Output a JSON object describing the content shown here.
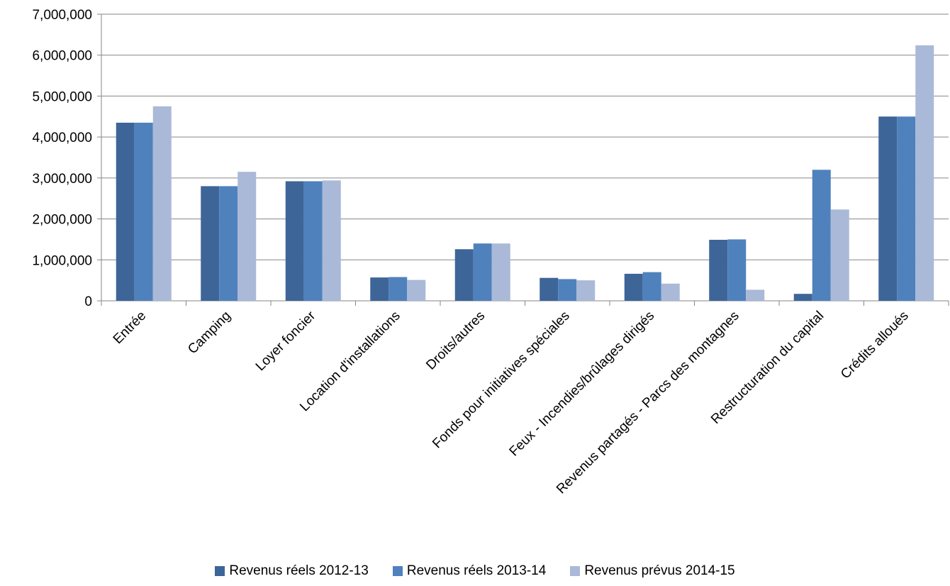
{
  "chart_data": {
    "type": "bar",
    "categories": [
      "Entrée",
      "Camping",
      "Loyer foncier",
      "Location d'installations",
      "Droits/autres",
      "Fonds pour initiatives spéciales",
      "Feux - Incendies/brûlages dirigés",
      "Revenus partagés - Parcs des montagnes",
      "Restructuration du capital",
      "Crédits alloués"
    ],
    "series": [
      {
        "name": "Revenus réels 2012-13",
        "color": "#3e6598",
        "values": [
          4350000,
          2800000,
          2920000,
          570000,
          1260000,
          560000,
          660000,
          1490000,
          170000,
          4500000
        ]
      },
      {
        "name": "Revenus réels 2013-14",
        "color": "#4f81bd",
        "values": [
          4350000,
          2800000,
          2920000,
          580000,
          1400000,
          530000,
          700000,
          1500000,
          3200000,
          4500000
        ]
      },
      {
        "name": "Revenus prévus 2014-15",
        "color": "#aab9d7",
        "values": [
          4750000,
          3150000,
          2940000,
          510000,
          1400000,
          500000,
          420000,
          270000,
          2230000,
          6240000
        ]
      }
    ],
    "yticks": [
      "0",
      "1,000,000",
      "2,000,000",
      "3,000,000",
      "4,000,000",
      "5,000,000",
      "6,000,000",
      "7,000,000"
    ],
    "ylim": [
      0,
      7000000
    ],
    "grid": true,
    "legend_position": "bottom"
  }
}
